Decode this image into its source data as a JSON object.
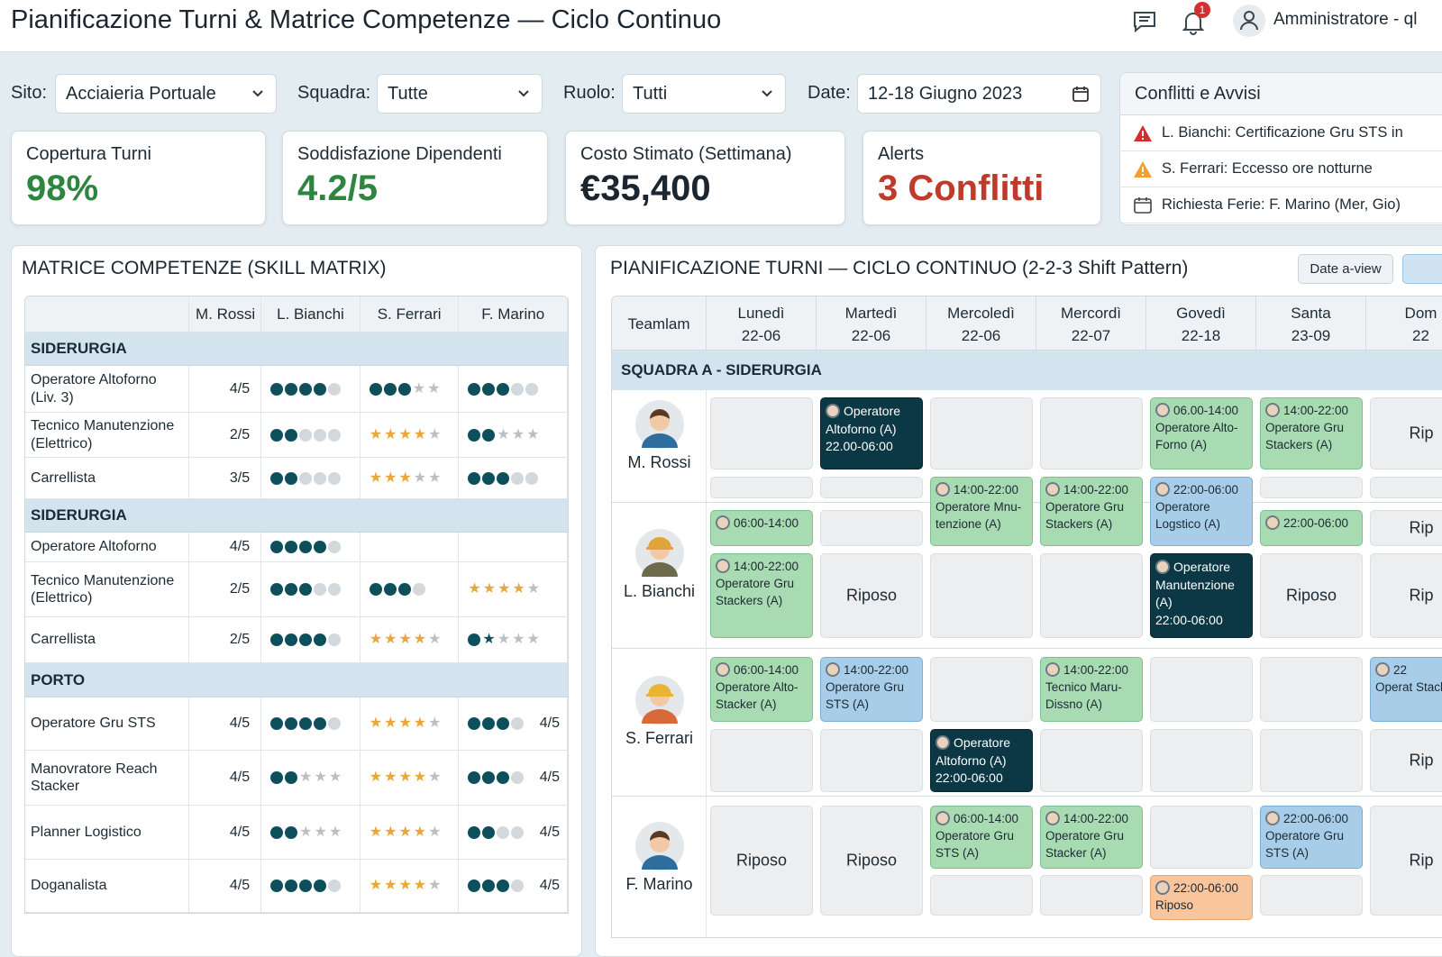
{
  "header": {
    "title": "Pianificazione Turni & Matrice Competenze — Ciclo Continuo",
    "user": "Amministratore - ql",
    "notifications": "1",
    "icons": [
      "chat-icon",
      "bell-icon",
      "user-icon"
    ]
  },
  "filters": {
    "site_label": "Sito:",
    "site_value": "Acciaieria Portuale",
    "team_label": "Squadra:",
    "team_value": "Tutte",
    "role_label": "Ruolo:",
    "role_value": "Tutti",
    "date_label": "Date:",
    "date_value": "12-18 Giugno 2023"
  },
  "kpis": [
    {
      "label": "Copertura Turni",
      "value": "98%",
      "color": "#2e8540"
    },
    {
      "label": "Soddisfazione Dipendenti",
      "value": "4.2/5",
      "color": "#2e8540"
    },
    {
      "label": "Costo Stimato (Settimana)",
      "value": "€35,400",
      "color": "#1b2630"
    },
    {
      "label": "Alerts",
      "value": "3 Conflitti",
      "color": "#c0392b"
    }
  ],
  "alerts": {
    "title": "Conflitti e Avvisi",
    "items": [
      {
        "icon": "warning-red-icon",
        "text": "L. Bianchi: Certificazione Gru STS in"
      },
      {
        "icon": "warning-orange-icon",
        "text": "S. Ferrari: Eccesso ore notturne"
      },
      {
        "icon": "calendar-icon",
        "text": "Richiesta Ferie: F. Marino (Mer, Gio)"
      }
    ]
  },
  "skills": {
    "title": "MATRICE COMPETENZE (SKILL MATRIX)",
    "columns": [
      "",
      "M. Rossi",
      "L. Bianchi",
      "S. Ferrari",
      "F. Marino"
    ],
    "legend": {
      "D": "dark-dot",
      "d": "grey-dot",
      "S": "gold-star",
      "s": "grey-star",
      "K": "dark-star"
    },
    "groups": [
      {
        "name": "SIDERURGIA",
        "rows": [
          {
            "skill": "Operatore Altoforno (Liv. 3)",
            "rossi": "4/5",
            "bianchi": "DDDDd",
            "ferrari": "DDDss",
            "marino": "DDDdd"
          },
          {
            "skill": "Tecnico Manutenzione (Elettrico)",
            "rossi": "2/5",
            "bianchi": "DDddd",
            "ferrari": "SSSSs",
            "marino": "DDsss"
          },
          {
            "skill": "Carrellista",
            "rossi": "3/5",
            "bianchi": "DDddd",
            "ferrari": "SSSss",
            "marino": "DDDdd"
          }
        ]
      },
      {
        "name": "SIDERURGIA",
        "rows": [
          {
            "skill": "Operatore Altoforno",
            "rossi": "4/5",
            "bianchi": "DDDDd",
            "ferrari": "",
            "marino": ""
          },
          {
            "skill": "Tecnico Manutenzione (Elettrico)",
            "rossi": "2/5",
            "bianchi": "DDDdd",
            "ferrari": "DDDd",
            "marino": "SSSSs"
          },
          {
            "skill": "Carrellista",
            "rossi": "2/5",
            "bianchi": "DDDDd",
            "ferrari": "SSSSs",
            "marino": "DKsss"
          }
        ]
      },
      {
        "name": "PORTO",
        "rows": [
          {
            "skill": "Operatore Gru STS",
            "rossi": "4/5",
            "bianchi": "DDDDd",
            "ferrari": "SSSSs",
            "marino": "DDDd",
            "marino_score": "4/5"
          },
          {
            "skill": "Manovratore Reach Stacker",
            "rossi": "4/5",
            "bianchi": "DDsss",
            "ferrari": "SSSSs",
            "marino": "DDDd",
            "marino_score": "4/5"
          },
          {
            "skill": "Planner Logistico",
            "rossi": "4/5",
            "bianchi": "DDsss",
            "ferrari": "SSSSs",
            "marino": "DDdd",
            "marino_score": "4/5"
          },
          {
            "skill": "Doganalista",
            "rossi": "4/5",
            "bianchi": "DDDDd",
            "ferrari": "SSSSs",
            "marino": "DDDd",
            "marino_score": "4/5"
          }
        ]
      }
    ]
  },
  "schedule": {
    "title": "PIANIFICAZIONE TURNI — CICLO CONTINUO (2-2-3 Shift Pattern)",
    "view_button": "Date a-view",
    "team_header": "Teamlam",
    "days": [
      {
        "name": "Lunedì",
        "date": "22-06"
      },
      {
        "name": "Martedì",
        "date": "22-06"
      },
      {
        "name": "Mercoledì",
        "date": "22-06"
      },
      {
        "name": "Mercordì",
        "date": "22-07"
      },
      {
        "name": "Govedì",
        "date": "22-18"
      },
      {
        "name": "Santa",
        "date": "23-09"
      },
      {
        "name": "Dom",
        "date": "22"
      }
    ],
    "squad": "SQUADRA A - SIDERURGIA",
    "people": [
      {
        "name": "M. Rossi"
      },
      {
        "name": "L. Bianchi"
      },
      {
        "name": "S. Ferrari"
      },
      {
        "name": "F. Marino"
      }
    ],
    "colors": {
      "green": "#a9dbb2",
      "blue": "#a8cde9",
      "dark": "#0c3846",
      "orange": "#f8c59d",
      "empty": "#eceef0"
    },
    "shifts": [
      {
        "person": "M. Rossi",
        "day": 0,
        "kind": "empty"
      },
      {
        "person": "M. Rossi",
        "day": 0,
        "kind": "empty"
      },
      {
        "person": "M. Rossi",
        "day": 1,
        "kind": "dark",
        "role": "Operatore Altoforno (A)",
        "time": "22.00-06:00"
      },
      {
        "person": "M. Rossi",
        "day": 1,
        "kind": "empty"
      },
      {
        "person": "M. Rossi",
        "day": 2,
        "kind": "empty"
      },
      {
        "person": "M. Rossi",
        "day": 3,
        "kind": "empty"
      },
      {
        "person": "M. Rossi",
        "day": 4,
        "kind": "green",
        "time": "06.00-14:00",
        "role": "Operatore Alto-Forno (A)"
      },
      {
        "person": "M. Rossi",
        "day": 5,
        "kind": "green",
        "time": "14:00-22:00",
        "role": "Operatore Gru Stackers (A)"
      },
      {
        "person": "M. Rossi",
        "day": 5,
        "kind": "empty"
      },
      {
        "person": "M. Rossi",
        "day": 6,
        "kind": "empty",
        "label": "Rip"
      },
      {
        "person": "M. Rossi",
        "day": 6,
        "kind": "empty"
      },
      {
        "person": "M. Rossi",
        "day": 2,
        "kind": "green",
        "time": "14:00-22:00",
        "role": "Operatore Mnu-tenzione (A)"
      },
      {
        "person": "M. Rossi",
        "day": 3,
        "kind": "green",
        "time": "14:00-22:00",
        "role": "Operatore Gru Stackers (A)"
      },
      {
        "person": "M. Rossi",
        "day": 4,
        "kind": "blue",
        "time": "22:00-06:00",
        "role": "Operatore Logstico (A)"
      },
      {
        "person": "L. Bianchi",
        "day": 0,
        "kind": "green",
        "time": "06:00-14:00"
      },
      {
        "person": "L. Bianchi",
        "day": 0,
        "kind": "green",
        "time": "14:00-22:00",
        "role": "Operatore Gru Stackers (A)"
      },
      {
        "person": "L. Bianchi",
        "day": 1,
        "kind": "empty"
      },
      {
        "person": "L. Bianchi",
        "day": 1,
        "kind": "empty",
        "label": "Riposo"
      },
      {
        "person": "L. Bianchi",
        "day": 2,
        "kind": "empty"
      },
      {
        "person": "L. Bianchi",
        "day": 3,
        "kind": "empty"
      },
      {
        "person": "L. Bianchi",
        "day": 4,
        "kind": "dark",
        "role": "Operatore Manutenzione (A)",
        "time": "22:00-06:00"
      },
      {
        "person": "L. Bianchi",
        "day": 5,
        "kind": "green",
        "time": "22:00-06:00"
      },
      {
        "person": "L. Bianchi",
        "day": 5,
        "kind": "empty",
        "label": "Riposo"
      },
      {
        "person": "L. Bianchi",
        "day": 6,
        "kind": "empty",
        "label": "Rip"
      },
      {
        "person": "L. Bianchi",
        "day": 6,
        "kind": "empty",
        "label": "Rip"
      },
      {
        "person": "S. Ferrari",
        "day": 0,
        "kind": "green",
        "time": "06:00-14:00",
        "role": "Operatore Alto-Stacker (A)"
      },
      {
        "person": "S. Ferrari",
        "day": 0,
        "kind": "empty"
      },
      {
        "person": "S. Ferrari",
        "day": 1,
        "kind": "blue",
        "time": "14:00-22:00",
        "role": "Operatore Gru STS (A)"
      },
      {
        "person": "S. Ferrari",
        "day": 1,
        "kind": "empty"
      },
      {
        "person": "S. Ferrari",
        "day": 2,
        "kind": "empty"
      },
      {
        "person": "S. Ferrari",
        "day": 2,
        "kind": "dark",
        "role": "Operatore Altoforno (A)",
        "time": "22:00-06:00"
      },
      {
        "person": "S. Ferrari",
        "day": 3,
        "kind": "green",
        "time": "14:00-22:00",
        "role": "Tecnico Maru-Dissno (A)"
      },
      {
        "person": "S. Ferrari",
        "day": 3,
        "kind": "empty"
      },
      {
        "person": "S. Ferrari",
        "day": 4,
        "kind": "empty"
      },
      {
        "person": "S. Ferrari",
        "day": 4,
        "kind": "empty"
      },
      {
        "person": "S. Ferrari",
        "day": 5,
        "kind": "empty"
      },
      {
        "person": "S. Ferrari",
        "day": 5,
        "kind": "empty"
      },
      {
        "person": "S. Ferrari",
        "day": 6,
        "kind": "blue",
        "time": "22",
        "role": "Operat Stacke"
      },
      {
        "person": "S. Ferrari",
        "day": 6,
        "kind": "empty",
        "label": "Rip"
      },
      {
        "person": "F. Marino",
        "day": 0,
        "kind": "empty",
        "label": "Riposo"
      },
      {
        "person": "F. Marino",
        "day": 1,
        "kind": "empty",
        "label": "Riposo"
      },
      {
        "person": "F. Marino",
        "day": 2,
        "kind": "green",
        "time": "06:00-14:00",
        "role": "Operatore Gru STS (A)"
      },
      {
        "person": "F. Marino",
        "day": 2,
        "kind": "empty"
      },
      {
        "person": "F. Marino",
        "day": 3,
        "kind": "green",
        "time": "14:00-22:00",
        "role": "Operatore Gru Stacker (A)"
      },
      {
        "person": "F. Marino",
        "day": 3,
        "kind": "empty"
      },
      {
        "person": "F. Marino",
        "day": 4,
        "kind": "empty"
      },
      {
        "person": "F. Marino",
        "day": 4,
        "kind": "orange",
        "time": "22:00-06:00",
        "role": "Riposo"
      },
      {
        "person": "F. Marino",
        "day": 5,
        "kind": "blue",
        "time": "22:00-06:00",
        "role": "Operatore Gru STS (A)"
      },
      {
        "person": "F. Marino",
        "day": 5,
        "kind": "empty"
      },
      {
        "person": "F. Marino",
        "day": 6,
        "kind": "empty",
        "label": "Rip"
      }
    ]
  }
}
